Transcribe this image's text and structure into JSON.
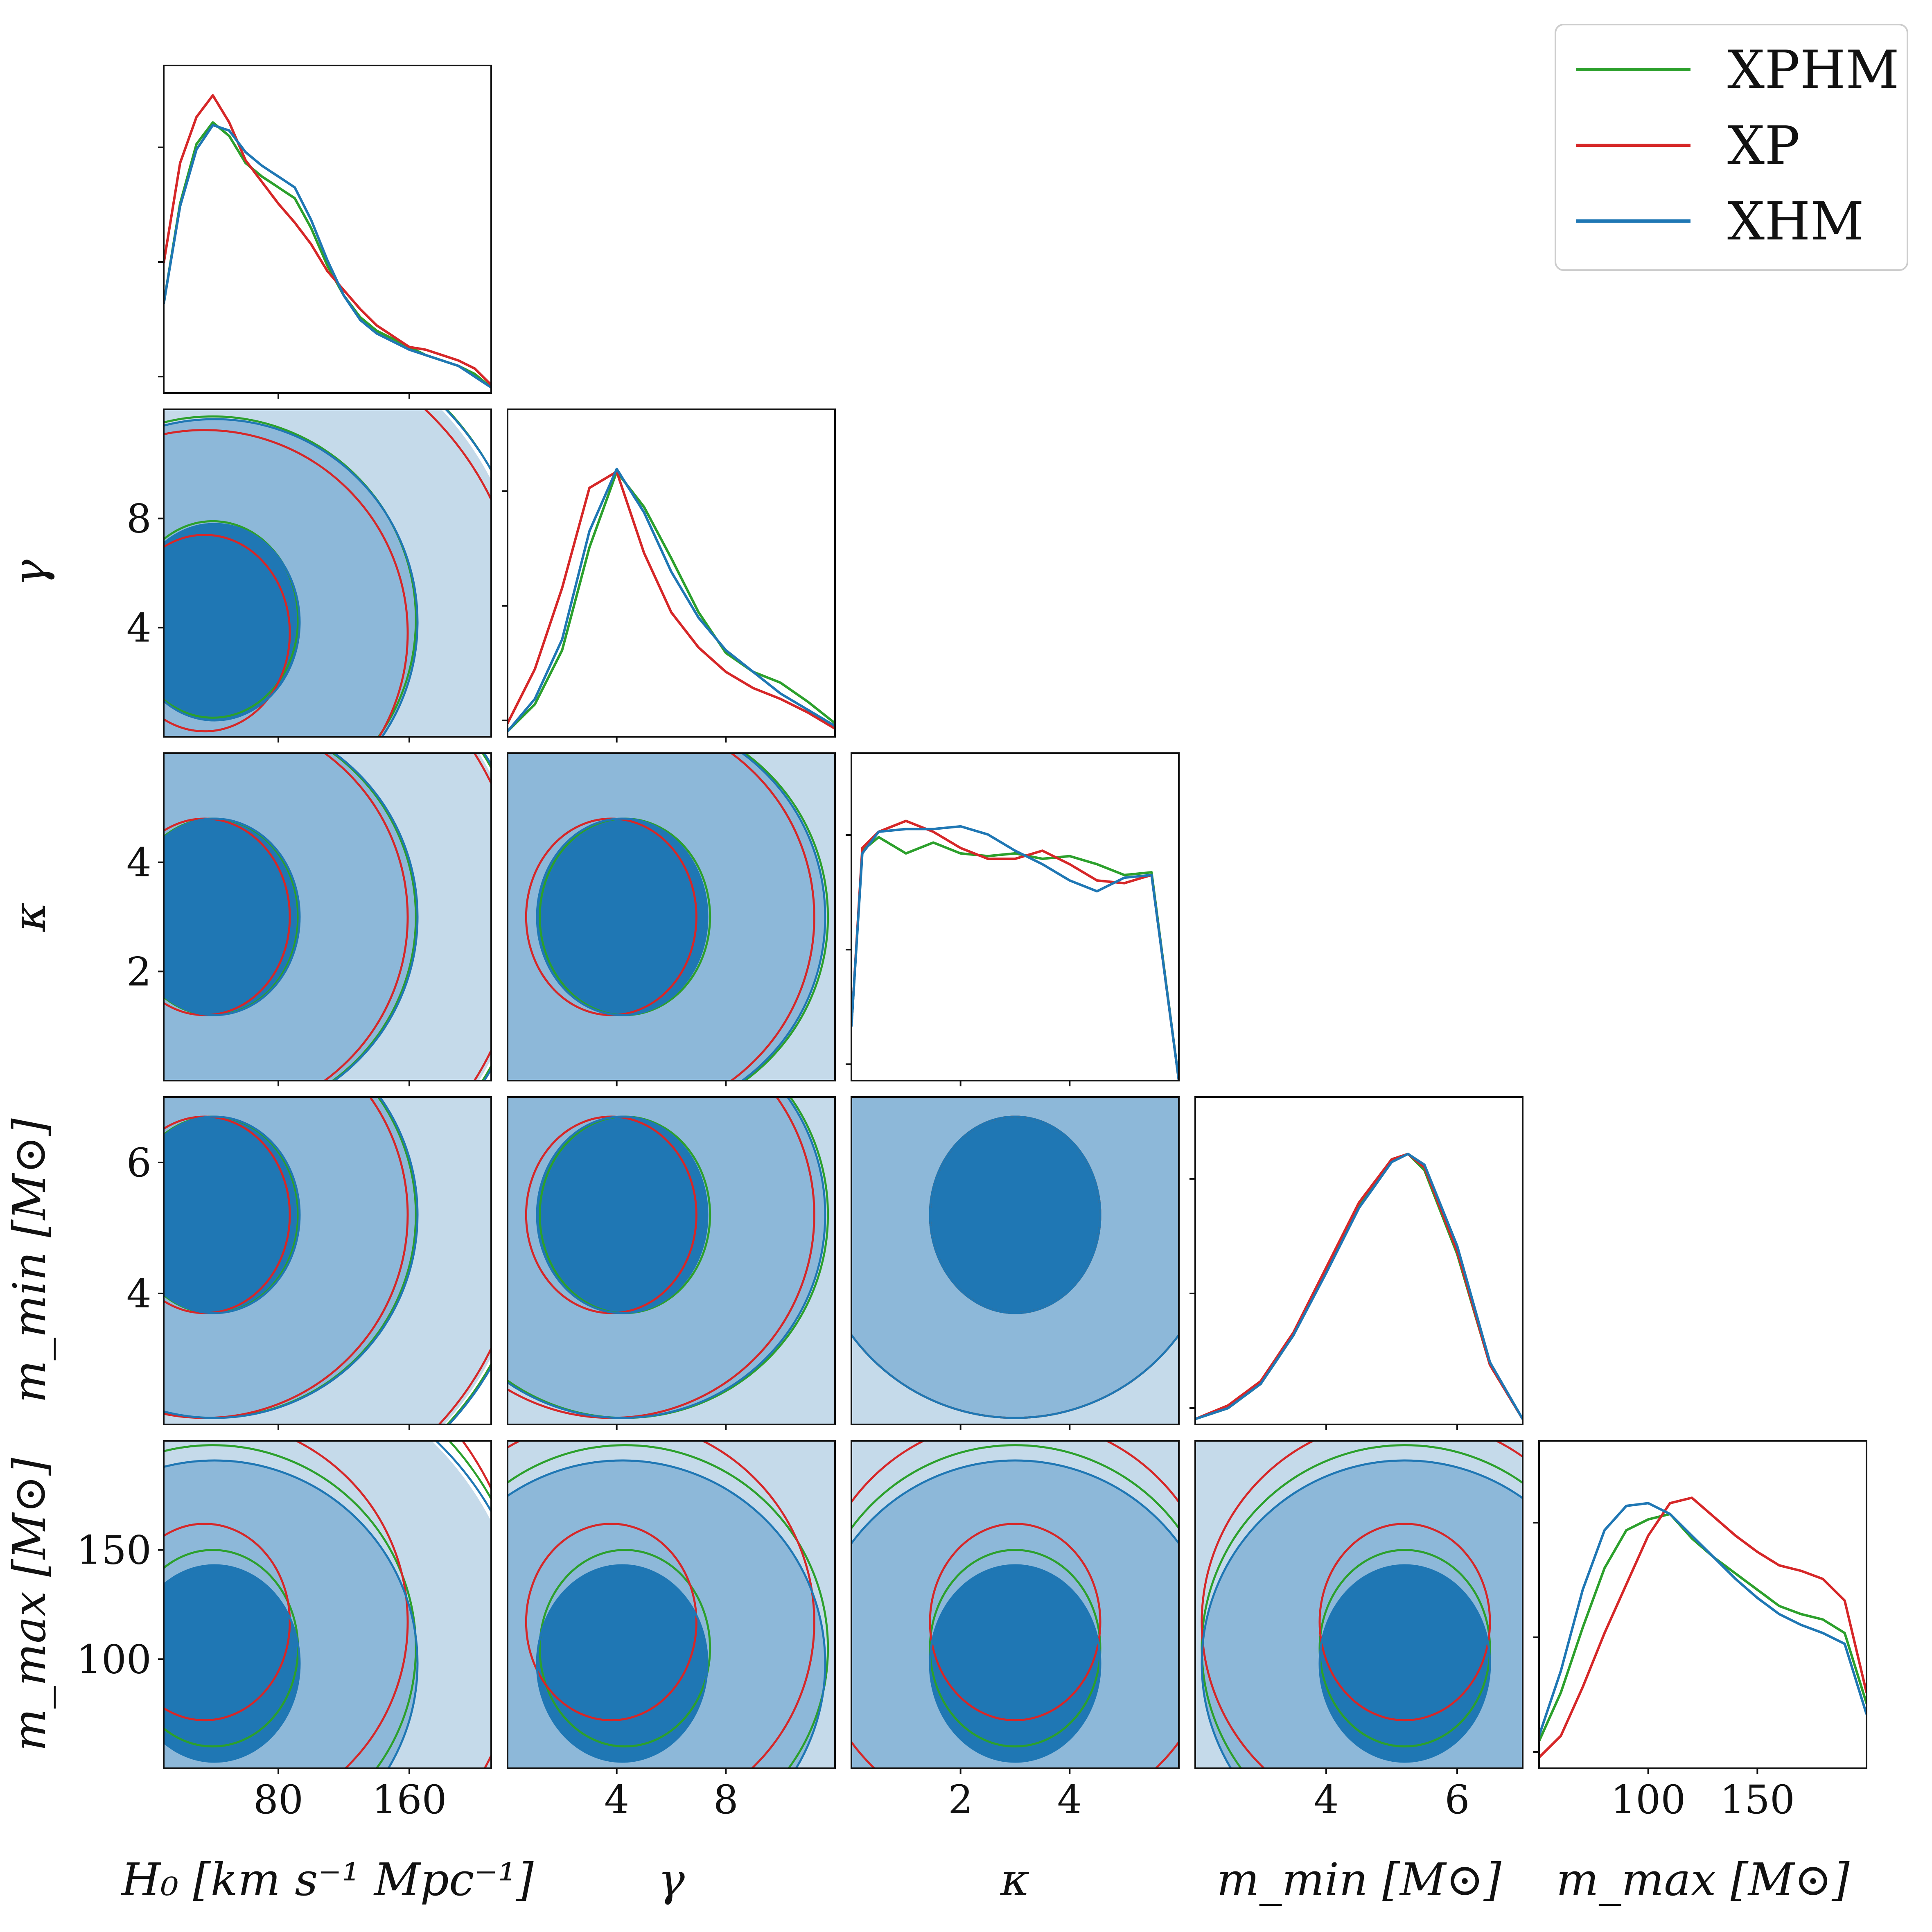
{
  "chart_data": {
    "type": "corner",
    "parameters": [
      {
        "key": "H0",
        "label": "H₀ [km s⁻¹ Mpc⁻¹]",
        "range": [
          10,
          210
        ],
        "ticks": [
          80,
          160
        ],
        "tick_labels": [
          "80",
          "160"
        ]
      },
      {
        "key": "gamma",
        "label": "γ",
        "range": [
          0,
          12
        ],
        "ticks": [
          4,
          8
        ],
        "tick_labels": [
          "4",
          "8"
        ]
      },
      {
        "key": "kappa",
        "label": "κ",
        "range": [
          0,
          6
        ],
        "ticks": [
          2,
          4
        ],
        "tick_labels": [
          "2",
          "4"
        ]
      },
      {
        "key": "m_min",
        "label": "m_min [M⊙]",
        "range": [
          2.0,
          7.0
        ],
        "ticks": [
          4,
          6
        ],
        "tick_labels": [
          "4",
          "6"
        ]
      },
      {
        "key": "m_max",
        "label": "m_max [M⊙]",
        "range": [
          50,
          200
        ],
        "ticks": [
          100,
          150
        ],
        "tick_labels": [
          "100",
          "150"
        ]
      }
    ],
    "series": [
      {
        "name": "XPHM",
        "color": "#2ca02c",
        "peaks": {
          "H0": 40,
          "gamma": 4.3,
          "kappa": 3.0,
          "m_min": 5.2,
          "m_max": 105
        }
      },
      {
        "name": "XP",
        "color": "#d62728",
        "peaks": {
          "H0": 35,
          "gamma": 3.8,
          "kappa": 3.0,
          "m_min": 5.2,
          "m_max": 117
        }
      },
      {
        "name": "XHM",
        "color": "#1f77b4",
        "peaks": {
          "H0": 41,
          "gamma": 4.2,
          "kappa": 3.0,
          "m_min": 5.2,
          "m_max": 98
        }
      }
    ],
    "marginals": {
      "H0": [
        {
          "x": [
            10,
            20,
            30,
            40,
            50,
            60,
            70,
            80,
            90,
            100,
            110,
            120,
            130,
            140,
            150,
            160,
            170,
            180,
            190,
            200,
            210
          ],
          "XPHM": [
            0.33,
            0.7,
            0.92,
            1.0,
            0.95,
            0.85,
            0.8,
            0.76,
            0.72,
            0.61,
            0.47,
            0.36,
            0.28,
            0.23,
            0.2,
            0.17,
            0.14,
            0.12,
            0.1,
            0.07,
            0.02
          ],
          "XP": [
            0.48,
            0.85,
            1.02,
            1.1,
            1.0,
            0.86,
            0.78,
            0.7,
            0.63,
            0.55,
            0.45,
            0.38,
            0.31,
            0.25,
            0.21,
            0.17,
            0.16,
            0.14,
            0.12,
            0.09,
            0.03
          ],
          "XHM": [
            0.33,
            0.69,
            0.9,
            0.99,
            0.97,
            0.89,
            0.84,
            0.8,
            0.76,
            0.64,
            0.49,
            0.36,
            0.27,
            0.22,
            0.19,
            0.16,
            0.14,
            0.12,
            0.1,
            0.06,
            0.02
          ]
        }
      ],
      "gamma": [
        {
          "x": [
            0,
            1,
            2,
            3,
            4,
            5,
            6,
            7,
            8,
            9,
            10,
            11,
            12
          ],
          "XPHM": [
            0.02,
            0.12,
            0.32,
            0.7,
            0.98,
            0.85,
            0.66,
            0.46,
            0.31,
            0.24,
            0.2,
            0.13,
            0.05
          ],
          "XP": [
            0.05,
            0.25,
            0.55,
            0.92,
            0.98,
            0.68,
            0.46,
            0.33,
            0.24,
            0.18,
            0.14,
            0.09,
            0.03
          ],
          "XHM": [
            0.02,
            0.14,
            0.36,
            0.76,
            0.99,
            0.83,
            0.61,
            0.44,
            0.32,
            0.24,
            0.16,
            0.1,
            0.04
          ]
        }
      ],
      "kappa": [
        {
          "x": [
            0,
            0.2,
            0.5,
            1.0,
            1.5,
            2.0,
            2.5,
            3.0,
            3.5,
            4.0,
            4.5,
            5.0,
            5.5,
            6.0
          ],
          "XPHM": [
            0.2,
            0.85,
            0.9,
            0.84,
            0.88,
            0.84,
            0.83,
            0.84,
            0.82,
            0.83,
            0.8,
            0.76,
            0.77,
            0.0
          ],
          "XP": [
            0.2,
            0.86,
            0.92,
            0.96,
            0.92,
            0.86,
            0.82,
            0.82,
            0.85,
            0.8,
            0.74,
            0.73,
            0.76,
            0.0
          ],
          "XHM": [
            0.2,
            0.84,
            0.92,
            0.93,
            0.93,
            0.94,
            0.91,
            0.85,
            0.8,
            0.74,
            0.7,
            0.75,
            0.76,
            0.0
          ]
        }
      ],
      "m_min": [
        {
          "x": [
            2.0,
            2.5,
            3.0,
            3.5,
            4.0,
            4.5,
            5.0,
            5.25,
            5.5,
            6.0,
            6.5,
            7.0
          ],
          "XPHM": [
            0.02,
            0.06,
            0.15,
            0.33,
            0.57,
            0.81,
            0.98,
            1.0,
            0.94,
            0.63,
            0.22,
            0.02
          ],
          "XP": [
            0.02,
            0.07,
            0.16,
            0.34,
            0.58,
            0.82,
            0.98,
            1.0,
            0.95,
            0.64,
            0.22,
            0.02
          ],
          "XHM": [
            0.02,
            0.06,
            0.15,
            0.33,
            0.56,
            0.8,
            0.97,
            1.0,
            0.96,
            0.66,
            0.23,
            0.02
          ]
        }
      ],
      "m_max": [
        {
          "x": [
            50,
            60,
            70,
            80,
            90,
            100,
            110,
            120,
            130,
            140,
            150,
            160,
            170,
            180,
            190,
            200
          ],
          "XPHM": [
            0.1,
            0.28,
            0.52,
            0.74,
            0.88,
            0.92,
            0.94,
            0.85,
            0.78,
            0.72,
            0.66,
            0.6,
            0.57,
            0.55,
            0.5,
            0.24
          ],
          "XP": [
            0.04,
            0.12,
            0.3,
            0.5,
            0.68,
            0.86,
            0.98,
            1.0,
            0.93,
            0.86,
            0.8,
            0.75,
            0.73,
            0.7,
            0.62,
            0.28
          ],
          "XHM": [
            0.12,
            0.36,
            0.66,
            0.88,
            0.97,
            0.98,
            0.94,
            0.86,
            0.78,
            0.7,
            0.63,
            0.57,
            0.53,
            0.5,
            0.46,
            0.2
          ]
        }
      ]
    },
    "legend_position": "top-right",
    "fills": {
      "levels": 3,
      "colors": [
        "#c5daea",
        "#8db8d9",
        "#1f77b4"
      ]
    }
  }
}
